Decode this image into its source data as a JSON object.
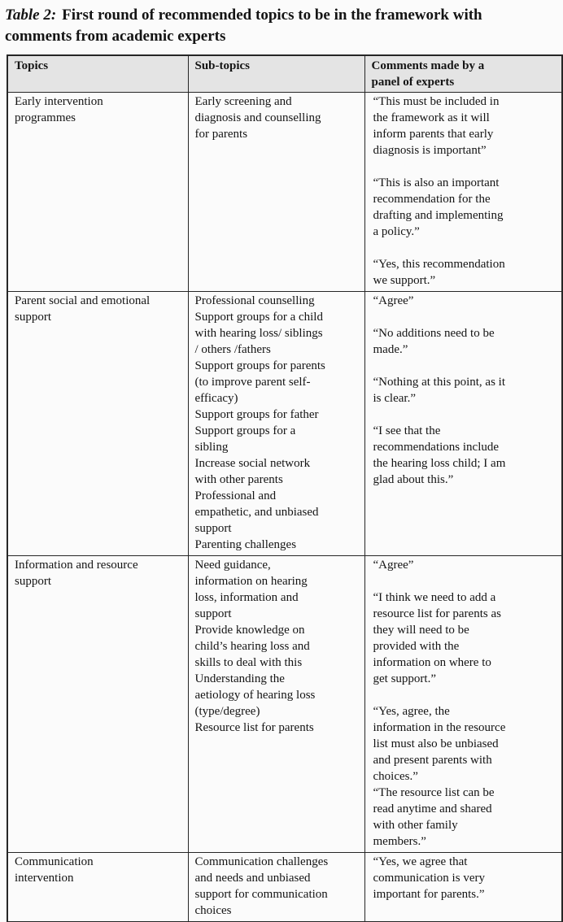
{
  "caption": {
    "label": "Table 2:",
    "text": "First round of recommended topics to be in the framework with comments from academic experts"
  },
  "table": {
    "headers": [
      "Topics",
      "Sub-topics",
      "Comments made by a panel of experts"
    ],
    "rows": [
      {
        "topic": "Early intervention programmes",
        "subtopics": [
          "Early screening and diagnosis and counselling for parents"
        ],
        "comments": [
          "“This must be included in the framework as it will inform parents that early diagnosis is important”",
          "“This is also an important recommendation for the drafting and implementing a policy.”",
          "“Yes, this recommendation we support.”"
        ]
      },
      {
        "topic": "Parent social and emotional support",
        "subtopics": [
          "Professional counselling",
          "Support groups for a child with hearing loss/ siblings / others /fathers",
          "Support groups for parents (to improve parent self-efficacy)",
          "Support groups for father",
          "Support groups for a sibling",
          "Increase social network with other parents",
          "Professional and empathetic, and unbiased support",
          "Parenting challenges"
        ],
        "comments": [
          "“Agree”",
          "“No additions need to be made.”",
          "“Nothing at this point, as it is clear.”",
          "“I see that the recommendations include the hearing loss child; I am glad about this.”"
        ]
      },
      {
        "topic": "Information and resource support",
        "subtopics": [
          "Need guidance, information on hearing loss, information and support",
          "Provide knowledge on child’s hearing loss and skills to deal with this",
          "Understanding the aetiology of hearing loss (type/degree)",
          "Resource list for parents"
        ],
        "comments": [
          "“Agree”",
          "“I think we need to add a resource list for parents as they will need to be provided with the information on where to get support.”",
          "“Yes, agree, the information in the resource list must also be unbiased and present parents with choices.”",
          "“The resource list can be read anytime and shared with other family members.”"
        ]
      },
      {
        "topic": "Communication intervention",
        "subtopics": [
          "Communication challenges and needs and unbiased support for communication choices"
        ],
        "comments": [
          "“Yes, we agree that communication is very important for parents.”"
        ]
      }
    ]
  },
  "colors": {
    "page_bg": "#fbfbfb",
    "header_bg": "#e4e4e4",
    "border": "#262626",
    "text": "#141414"
  }
}
